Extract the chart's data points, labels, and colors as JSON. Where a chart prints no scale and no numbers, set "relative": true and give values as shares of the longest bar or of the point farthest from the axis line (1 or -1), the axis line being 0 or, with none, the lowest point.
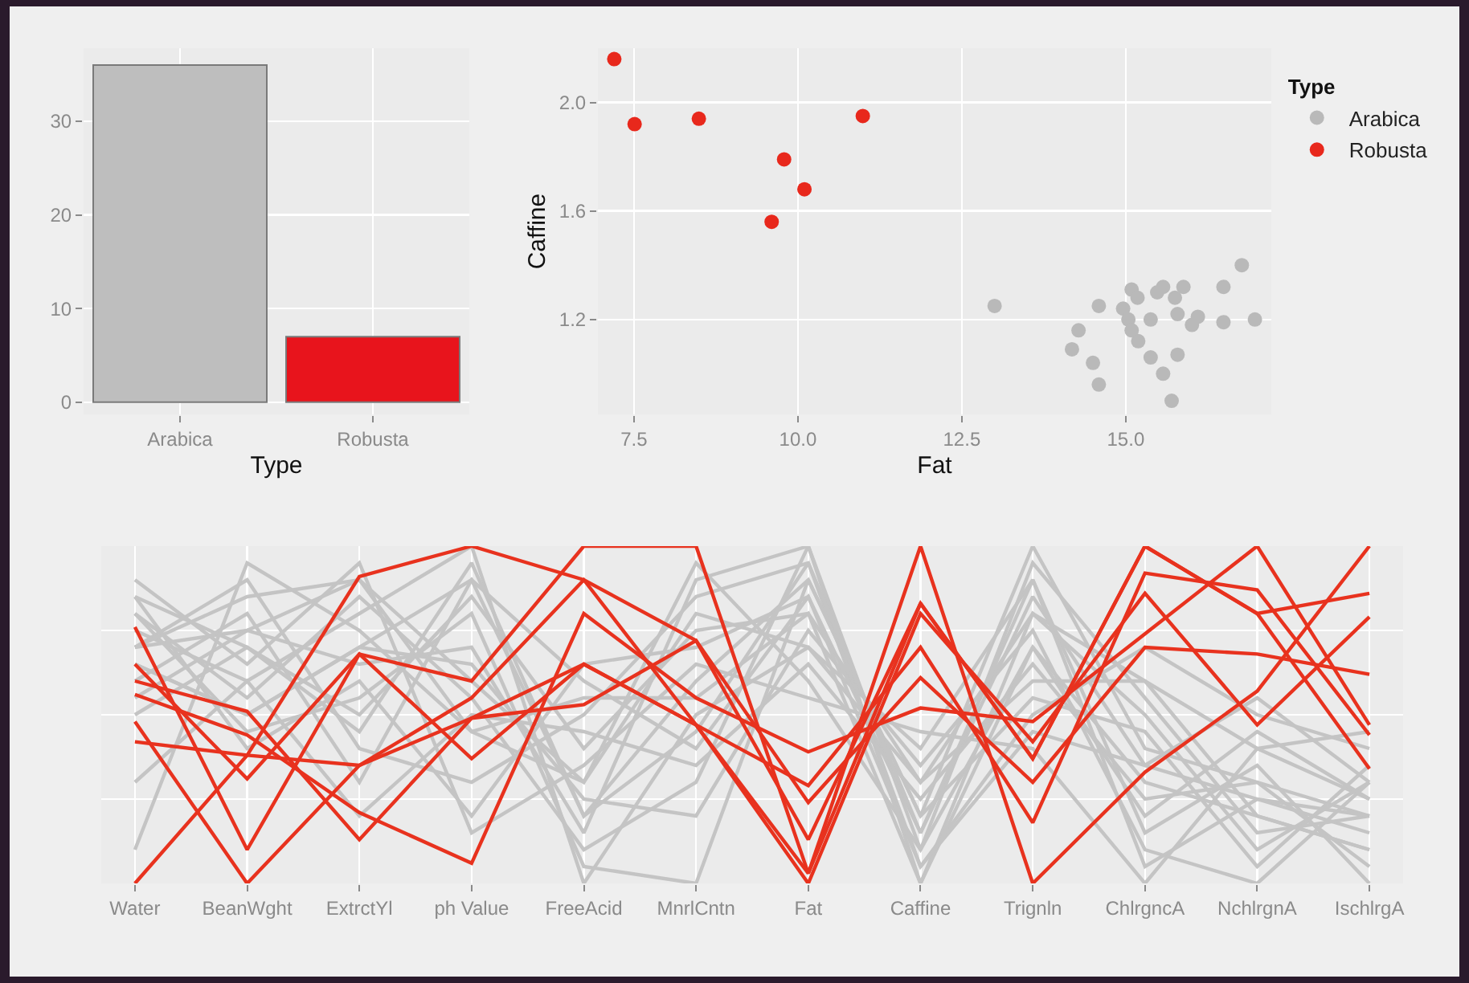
{
  "chart_data": [
    {
      "type": "bar",
      "xlabel": "Type",
      "categories": [
        "Arabica",
        "Robusta"
      ],
      "values": [
        36,
        7
      ],
      "colors": [
        "#bebebe",
        "#e8141c"
      ],
      "ylim": [
        -1.3,
        37.8
      ],
      "yticks": [
        0,
        10,
        20,
        30
      ],
      "grid": true
    },
    {
      "type": "scatter",
      "xlabel": "Fat",
      "ylabel": "Caffine",
      "legend_title": "Type",
      "legend": "right",
      "marker": "circle",
      "grid": true,
      "xlim": [
        6.95,
        17.22
      ],
      "xticks": [
        {
          "value": 7.5,
          "label": "7.5"
        },
        {
          "value": 10,
          "label": "10.0"
        },
        {
          "value": 12.5,
          "label": "12.5"
        },
        {
          "value": 15,
          "label": "15.0"
        }
      ],
      "ylim": [
        0.85,
        2.2
      ],
      "yticks": [
        1.2,
        1.6,
        {
          "value": 2,
          "label": "2.0"
        }
      ],
      "series": [
        {
          "name": "Arabica",
          "color": "#b9b9b9",
          "x": [
            13.0,
            14.59,
            14.28,
            14.18,
            14.5,
            14.59,
            14.96,
            15.09,
            15.18,
            15.04,
            15.09,
            15.19,
            15.38,
            15.38,
            15.57,
            15.57,
            15.7,
            15.75,
            15.79,
            15.79,
            15.88,
            16.01,
            16.1,
            16.49,
            16.49,
            16.77,
            16.97,
            15.48
          ],
          "values": [
            1.25,
            1.25,
            1.16,
            1.09,
            1.04,
            0.96,
            1.24,
            1.31,
            1.28,
            1.2,
            1.16,
            1.12,
            1.2,
            1.06,
            1.32,
            1.0,
            0.9,
            1.28,
            1.22,
            1.07,
            1.32,
            1.18,
            1.21,
            1.32,
            1.19,
            1.4,
            1.2,
            1.3
          ]
        },
        {
          "name": "Robusta",
          "color": "#e8281c",
          "x": [
            7.2,
            7.51,
            8.49,
            9.79,
            10.1,
            9.6,
            10.99
          ],
          "values": [
            2.16,
            1.92,
            1.94,
            1.79,
            1.68,
            1.56,
            1.95
          ]
        }
      ]
    },
    {
      "type": "line",
      "relative": true,
      "grid": true,
      "categories": [
        "Water",
        "BeanWght",
        "ExtrctYl",
        "ph Value",
        "FreeAcid",
        "MnrlCntn",
        "Fat",
        "Caffine",
        "Trignln",
        "ChlrgncA",
        "NchlrgnA",
        "IschlrgA"
      ],
      "series": [
        {
          "color": "#c4c4c4",
          "values": [
            0.7,
            0.75,
            0.9,
            0.45,
            0.3,
            0.95,
            0.6,
            0.1,
            0.7,
            0.3,
            0.2,
            0.1
          ]
        },
        {
          "color": "#c4c4c4",
          "values": [
            0.65,
            0.5,
            0.7,
            0.9,
            0.2,
            0.6,
            0.9,
            0.2,
            1.0,
            0.4,
            0.3,
            0.2
          ]
        },
        {
          "color": "#c4c4c4",
          "values": [
            0.8,
            0.55,
            0.85,
            0.55,
            0.1,
            0.3,
            1.0,
            0.0,
            0.8,
            0.5,
            0.1,
            0.3
          ]
        },
        {
          "color": "#c4c4c4",
          "values": [
            0.85,
            0.7,
            0.5,
            0.85,
            0.4,
            0.75,
            0.8,
            0.3,
            0.6,
            0.6,
            0.4,
            0.25
          ]
        },
        {
          "color": "#c4c4c4",
          "values": [
            0.75,
            0.6,
            0.8,
            1.0,
            0.0,
            0.5,
            0.7,
            0.4,
            0.9,
            0.15,
            0.35,
            0.0
          ]
        },
        {
          "color": "#c4c4c4",
          "values": [
            0.7,
            0.9,
            0.4,
            0.3,
            0.5,
            0.85,
            0.95,
            0.05,
            0.5,
            0.7,
            0.5,
            0.4
          ]
        },
        {
          "color": "#c4c4c4",
          "values": [
            0.65,
            0.5,
            0.7,
            0.65,
            0.25,
            0.2,
            0.75,
            0.35,
            0.75,
            0.1,
            0.0,
            0.3
          ]
        },
        {
          "color": "#c4c4c4",
          "values": [
            0.6,
            0.8,
            0.3,
            0.9,
            0.6,
            0.4,
            0.85,
            0.15,
            0.85,
            0.35,
            0.25,
            0.15
          ]
        },
        {
          "color": "#c4c4c4",
          "values": [
            0.9,
            0.65,
            0.95,
            0.15,
            0.35,
            0.65,
            0.55,
            0.45,
            0.4,
            0.0,
            0.4,
            0.45
          ]
        },
        {
          "color": "#c4c4c4",
          "values": [
            0.55,
            0.75,
            0.65,
            0.7,
            0.15,
            0.9,
            1.0,
            0.1,
            0.95,
            0.55,
            0.15,
            0.2
          ]
        },
        {
          "color": "#c4c4c4",
          "values": [
            0.3,
            0.6,
            0.2,
            0.5,
            0.45,
            0.35,
            0.65,
            0.25,
            0.65,
            0.25,
            0.3,
            0.05
          ]
        },
        {
          "color": "#c4c4c4",
          "values": [
            0.8,
            0.45,
            0.55,
            0.8,
            0.05,
            0.0,
            0.9,
            0.2,
            0.55,
            0.45,
            0.05,
            0.35
          ]
        },
        {
          "color": "#c4c4c4",
          "values": [
            0.1,
            0.95,
            0.75,
            0.45,
            0.55,
            0.55,
            0.8,
            0.0,
            0.7,
            0.2,
            0.45,
            0.25
          ]
        },
        {
          "color": "#c4c4c4",
          "values": [
            0.7,
            0.85,
            0.9,
            0.6,
            0.3,
            0.8,
            0.7,
            0.3,
            0.8,
            0.6,
            0.2,
            0.1
          ]
        },
        {
          "color": "#c4c4c4",
          "values": [
            0.85,
            0.4,
            0.6,
            0.2,
            0.65,
            0.7,
            0.85,
            0.05,
            0.45,
            0.35,
            0.55,
            0.3
          ]
        },
        {
          "color": "#c4c4c4",
          "values": [
            0.5,
            0.7,
            0.45,
            0.95,
            0.2,
            0.45,
            0.95,
            0.15,
            0.9,
            0.05,
            0.25,
            0.2
          ]
        },
        {
          "color": "#e8321e",
          "values": [
            0.76,
            0.1,
            0.68,
            0.6,
            1.0,
            1.0,
            0.03,
            1.0,
            0.0,
            0.33,
            0.57,
            1.0
          ]
        },
        {
          "color": "#e8321e",
          "values": [
            0.0,
            0.38,
            0.91,
            1.0,
            0.9,
            0.72,
            0.13,
            0.83,
            0.37,
            1.0,
            0.8,
            0.86
          ]
        },
        {
          "color": "#e8321e",
          "values": [
            0.48,
            0.0,
            0.35,
            0.55,
            0.9,
            0.47,
            0.29,
            0.7,
            0.18,
            0.92,
            0.87,
            0.44
          ]
        },
        {
          "color": "#e8321e",
          "values": [
            0.65,
            0.31,
            0.68,
            0.37,
            0.65,
            0.47,
            0.0,
            0.8,
            0.42,
            0.86,
            0.47,
            0.79
          ]
        },
        {
          "color": "#e8321e",
          "values": [
            0.6,
            0.51,
            0.13,
            0.49,
            0.53,
            0.72,
            0.24,
            0.61,
            0.3,
            0.7,
            0.68,
            0.62
          ]
        },
        {
          "color": "#e8321e",
          "values": [
            0.56,
            0.44,
            0.21,
            0.06,
            0.8,
            0.55,
            0.39,
            0.52,
            0.48,
            0.74,
            1.0,
            0.47
          ]
        },
        {
          "color": "#e8321e",
          "values": [
            0.42,
            0.38,
            0.35,
            0.49,
            0.65,
            0.47,
            0.03,
            0.83,
            0.37,
            1.0,
            0.8,
            0.34
          ]
        }
      ]
    }
  ]
}
